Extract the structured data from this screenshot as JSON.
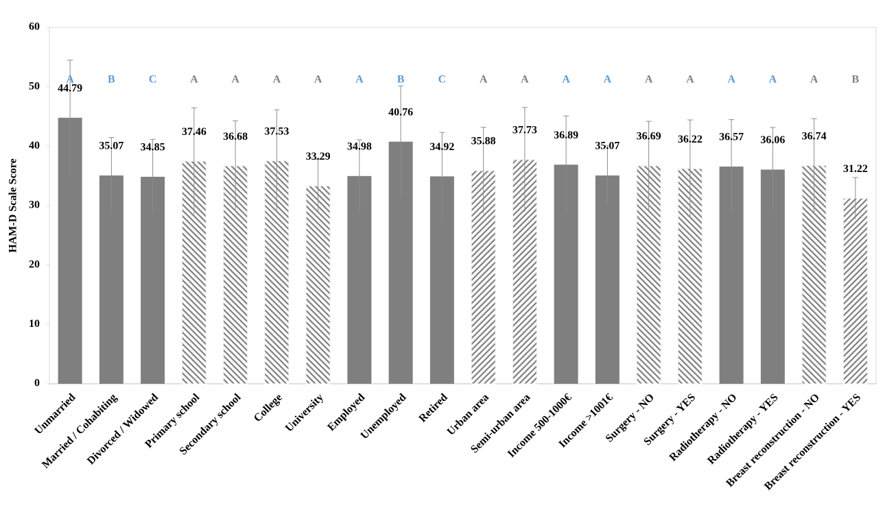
{
  "chart_data": {
    "type": "bar",
    "y_label": "HAM-D Scale Score",
    "categories": [
      "Unmarried",
      "Married / Cohabiting",
      "Divorced / Widowed",
      "Primary school",
      "Secondary school",
      "College",
      "University",
      "Employed",
      "Unemployed",
      "Retired",
      "Urban area",
      "Semi-urban area",
      "Income 500-1000€",
      "Income >1001€",
      "Surgery - NO",
      "Surgery - YES",
      "Radiotherapy - NO",
      "Radiotherapy - YES",
      "Breast reconstruction - NO",
      "Breast reconstruction - YES"
    ],
    "values": [
      44.79,
      35.07,
      34.85,
      37.46,
      36.68,
      37.53,
      33.29,
      34.98,
      40.76,
      34.92,
      35.88,
      37.73,
      36.89,
      35.07,
      36.69,
      36.22,
      36.57,
      36.06,
      36.74,
      31.22
    ],
    "errors": [
      9.7,
      6.4,
      6.3,
      9.0,
      7.6,
      8.6,
      4.5,
      6.1,
      9.4,
      7.4,
      7.3,
      8.8,
      8.2,
      5.0,
      7.5,
      8.2,
      7.9,
      7.1,
      7.9,
      3.5
    ],
    "fills": [
      "solid",
      "solid",
      "solid",
      "hatch-back",
      "hatch-back",
      "hatch-back",
      "hatch-back",
      "solid",
      "solid",
      "solid",
      "hatch-fwd",
      "hatch-fwd",
      "solid",
      "solid",
      "hatch-back",
      "hatch-back",
      "solid",
      "solid",
      "hatch-back",
      "hatch-fwd"
    ],
    "letters": [
      "A",
      "B",
      "C",
      "A",
      "A",
      "A",
      "A",
      "A",
      "B",
      "C",
      "A",
      "A",
      "A",
      "A",
      "A",
      "A",
      "A",
      "A",
      "A",
      "B"
    ],
    "letter_colors": [
      "#5b9bd5",
      "#5b9bd5",
      "#5b9bd5",
      "#808080",
      "#808080",
      "#808080",
      "#808080",
      "#5b9bd5",
      "#5b9bd5",
      "#5b9bd5",
      "#808080",
      "#808080",
      "#5b9bd5",
      "#5b9bd5",
      "#808080",
      "#808080",
      "#5b9bd5",
      "#5b9bd5",
      "#808080",
      "#808080"
    ],
    "color": "#7f7f7f",
    "ylim": [
      0,
      60
    ],
    "yticks": [
      0,
      10,
      20,
      30,
      40,
      50,
      60
    ]
  }
}
